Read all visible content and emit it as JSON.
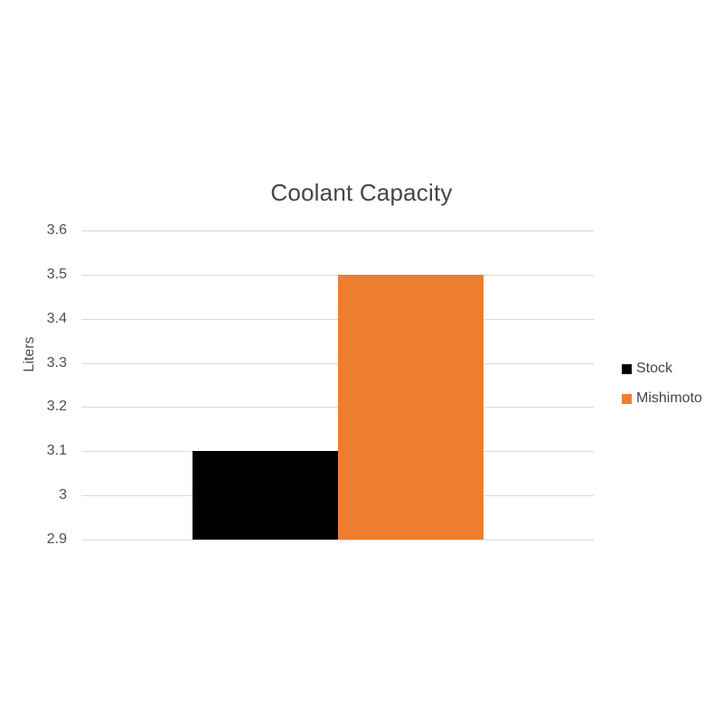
{
  "chart_data": {
    "type": "bar",
    "title": "Coolant Capacity",
    "xlabel": "",
    "ylabel": "Liters",
    "categories": [
      "Coolant Capacity"
    ],
    "series": [
      {
        "name": "Stock",
        "values": [
          3.1
        ],
        "color": "#000000"
      },
      {
        "name": "Mishimoto",
        "values": [
          3.5
        ],
        "color": "#ED7D31"
      }
    ],
    "ylim": [
      2.9,
      3.6
    ],
    "ytick_labels_top_to_bottom": [
      "3.6",
      "3.5",
      "3.4",
      "3.3",
      "3.2",
      "3.1",
      "3",
      "2.9"
    ],
    "grid": true,
    "legend_position": "right",
    "legend_entries": [
      "Stock",
      "Mishimoto"
    ]
  },
  "colors": {
    "background": "#ffffff",
    "gridline": "#D9D9D9",
    "title_text": "#454545",
    "axis_text": "#4D4D4D",
    "legend_text": "#454545",
    "bar_stock": "#000000",
    "bar_mishimoto": "#ED7D31"
  }
}
